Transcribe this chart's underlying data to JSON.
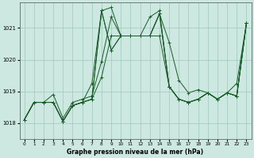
{
  "title": "Graphe pression niveau de la mer (hPa)",
  "background_color": "#cce8e0",
  "grid_color": "#a0c8bc",
  "line_color": "#1a5c2a",
  "xlim": [
    -0.5,
    23.5
  ],
  "ylim": [
    1017.5,
    1021.8
  ],
  "yticks": [
    1018,
    1019,
    1020,
    1021
  ],
  "xticks": [
    0,
    1,
    2,
    3,
    4,
    5,
    6,
    7,
    8,
    9,
    10,
    11,
    12,
    13,
    14,
    15,
    16,
    17,
    18,
    19,
    20,
    21,
    22,
    23
  ],
  "lines": [
    [
      1018.1,
      1018.65,
      1018.65,
      1018.65,
      1018.05,
      1018.55,
      1018.65,
      1018.75,
      1021.55,
      1020.3,
      1020.75,
      1020.75,
      1020.75,
      1020.75,
      1021.45,
      1020.55,
      1019.35,
      1018.95,
      1019.05,
      1018.95,
      1018.75,
      1018.95,
      1018.85,
      1021.15
    ],
    [
      1018.1,
      1018.65,
      1018.65,
      1018.65,
      1018.05,
      1018.55,
      1018.65,
      1018.75,
      1021.55,
      1020.3,
      1020.75,
      1020.75,
      1020.75,
      1020.75,
      1021.45,
      1019.15,
      1018.75,
      1018.65,
      1018.75,
      1018.95,
      1018.75,
      1018.95,
      1018.85,
      1021.15
    ],
    [
      1018.1,
      1018.65,
      1018.65,
      1018.9,
      1018.15,
      1018.65,
      1018.75,
      1018.85,
      1019.95,
      1021.35,
      1020.75,
      1020.75,
      1020.75,
      1021.35,
      1021.55,
      1019.15,
      1018.75,
      1018.65,
      1018.75,
      1018.95,
      1018.75,
      1018.95,
      1019.25,
      1021.15
    ],
    [
      1018.1,
      1018.65,
      1018.65,
      1018.65,
      1018.05,
      1018.55,
      1018.65,
      1019.25,
      1021.55,
      1021.65,
      1020.75,
      1020.75,
      1020.75,
      1020.75,
      1021.45,
      1019.15,
      1018.75,
      1018.65,
      1018.75,
      1018.95,
      1018.75,
      1018.95,
      1018.85,
      1021.15
    ],
    [
      1018.1,
      1018.65,
      1018.65,
      1018.65,
      1018.05,
      1018.55,
      1018.65,
      1018.75,
      1019.45,
      1020.75,
      1020.75,
      1020.75,
      1020.75,
      1020.75,
      1020.75,
      1019.15,
      1018.75,
      1018.65,
      1018.75,
      1018.95,
      1018.75,
      1018.95,
      1018.85,
      1021.15
    ]
  ]
}
